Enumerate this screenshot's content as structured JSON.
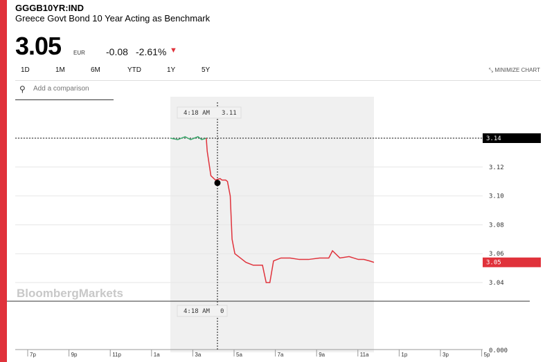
{
  "header": {
    "ticker": "GGGB10YR:IND",
    "name": "Greece Govt Bond 10 Year Acting as Benchmark",
    "price": "3.05",
    "currency": "EUR",
    "change": "-0.08",
    "change_pct": "-2.61%",
    "direction_glyph": "▼"
  },
  "tabs": [
    "1D",
    "1M",
    "6M",
    "YTD",
    "1Y",
    "5Y"
  ],
  "active_tab": "1D",
  "minimize": "MINIMIZE CHART",
  "comparison": {
    "placeholder": "Add a comparison"
  },
  "watermark": "BloombergMarkets",
  "colors": {
    "accent": "#e0323b",
    "up": "#3aa86b",
    "down": "#e0323b"
  },
  "chart_data": {
    "type": "line",
    "ylim": [
      3.03,
      3.15
    ],
    "yticks": [
      "3.14",
      "3.12",
      "3.10",
      "3.08",
      "3.06",
      "3.04"
    ],
    "xticks": [
      "7p",
      "9p",
      "11p",
      "1a",
      "3a",
      "5a",
      "7a",
      "9a",
      "11a",
      "1p",
      "3p",
      "5p"
    ],
    "previous_close": "3.14",
    "last_value": "3.05",
    "volume_axis_label": "0.000",
    "crosshair": {
      "time": "4:18 AM",
      "value": "3.11",
      "volume": "0"
    },
    "series": [
      {
        "x": [
          1.0,
          1.4,
          1.8,
          2.1,
          2.3,
          2.5,
          2.7,
          2.95,
          3.0,
          3.2,
          3.45,
          3.7,
          3.8,
          4.0,
          4.1,
          4.25,
          4.35,
          4.5,
          4.8,
          5.1,
          5.5,
          6.0,
          6.2,
          6.4,
          6.6,
          7.0,
          7.5,
          8.0,
          8.2,
          8.5,
          9.1,
          9.3,
          9.6,
          9.8,
          10.2,
          10.7,
          11.2,
          11.5,
          11.8,
          12.05
        ],
        "y": [
          3.14,
          3.139,
          3.141,
          3.139,
          3.14,
          3.141,
          3.139,
          3.14,
          3.131,
          3.114,
          3.111,
          3.112,
          3.111,
          3.111,
          3.11,
          3.1,
          3.07,
          3.06,
          3.057,
          3.054,
          3.052,
          3.052,
          3.04,
          3.04,
          3.055,
          3.057,
          3.057,
          3.056,
          3.056,
          3.056,
          3.057,
          3.057,
          3.057,
          3.062,
          3.057,
          3.058,
          3.056,
          3.056,
          3.055,
          3.054
        ]
      }
    ]
  }
}
